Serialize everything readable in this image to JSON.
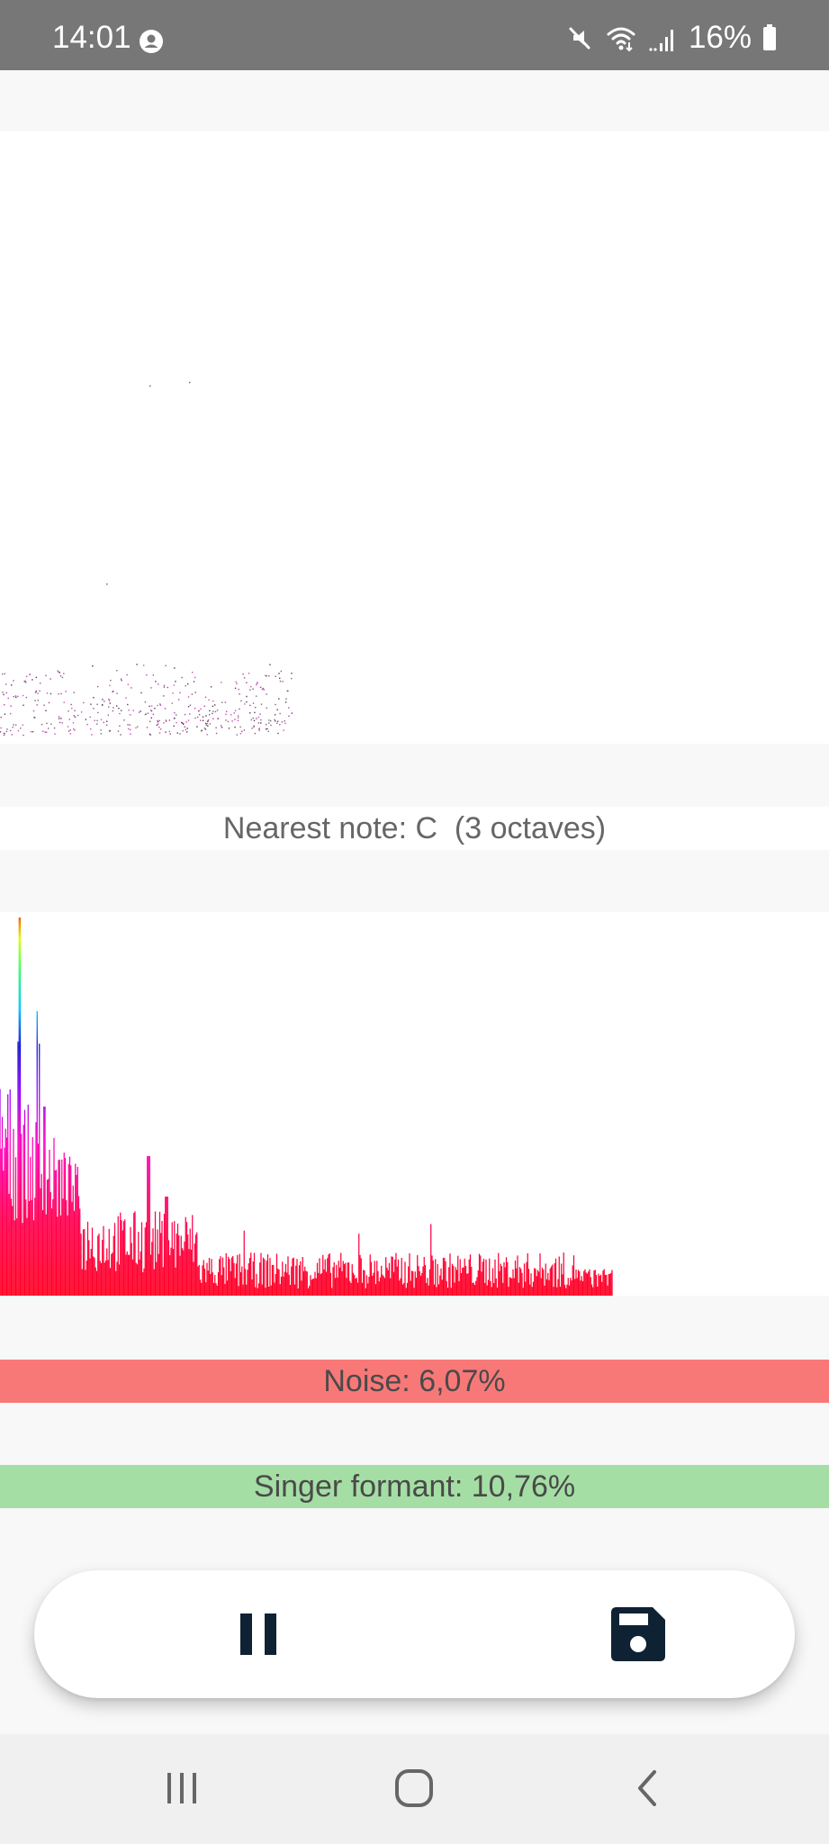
{
  "status_bar": {
    "time": "14:01",
    "battery_text": "16%",
    "icons": [
      "user-icon",
      "mute-icon",
      "wifi-icon",
      "signal-icon",
      "battery-icon"
    ]
  },
  "analysis": {
    "nearest_note": "Nearest note: C  (3 octaves)"
  },
  "metrics": {
    "noise": "Noise: 6,07%",
    "singer_formant": "Singer formant: 10,76%"
  },
  "controls": {
    "pause_icon": "pause-icon",
    "save_icon": "save-icon"
  },
  "nav_bar": {
    "icons": [
      "recents-icon",
      "home-icon",
      "back-icon"
    ]
  },
  "colors": {
    "status_bar_bg": "#777777",
    "noise_bar": "#f87878",
    "formant_bar": "#a4dea4",
    "button_icon": "#0f2234",
    "page_bg": "#f8f8f8"
  }
}
